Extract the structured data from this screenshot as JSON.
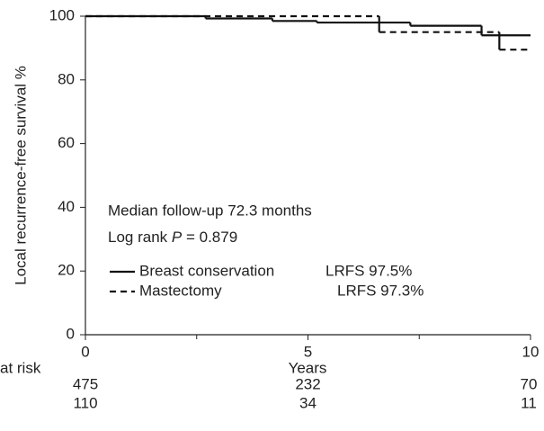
{
  "chart_data": {
    "type": "step",
    "xlabel": "Years",
    "ylabel": "Local recurrence-free survival %",
    "xlim": [
      0,
      10
    ],
    "ylim": [
      0,
      100
    ],
    "xticks": [
      0,
      5,
      10
    ],
    "xminor_ticks": [
      2.5,
      7.5
    ],
    "yticks": [
      0,
      20,
      40,
      60,
      80,
      100
    ],
    "annotations": [
      "Median follow-up 72.3 months",
      [
        "Log rank ",
        "P",
        " = 0.879"
      ]
    ],
    "series": [
      {
        "name": "Breast conservation",
        "style": "solid",
        "color": "#111111",
        "stat": "LRFS 97.5%",
        "x": [
          0,
          2.7,
          4.2,
          5.2,
          7.3,
          8.9,
          10
        ],
        "values": [
          100,
          99.3,
          98.5,
          98,
          97,
          94,
          94
        ]
      },
      {
        "name": "Mastectomy",
        "style": "dashed",
        "color": "#111111",
        "stat": "LRFS 97.3%",
        "x": [
          0,
          6.6,
          9.3,
          10
        ],
        "values": [
          100,
          95,
          89.5,
          89.5
        ]
      }
    ],
    "at_risk": {
      "label": "at risk",
      "rows": [
        [
          475,
          232,
          70
        ],
        [
          110,
          34,
          11
        ]
      ]
    }
  }
}
